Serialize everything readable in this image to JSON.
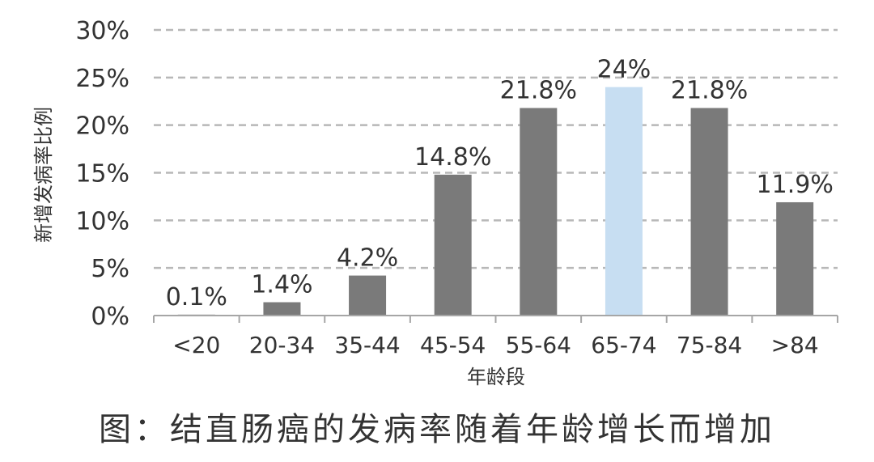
{
  "chart_data": {
    "type": "bar",
    "categories": [
      "<20",
      "20-34",
      "35-44",
      "45-54",
      "55-64",
      "65-74",
      "75-84",
      ">84"
    ],
    "values": [
      0.1,
      1.4,
      4.2,
      14.8,
      21.8,
      24,
      21.8,
      11.9
    ],
    "data_labels": [
      "0.1%",
      "1.4%",
      "4.2%",
      "14.8%",
      "21.8%",
      "24%",
      "21.8%",
      "11.9%"
    ],
    "highlight_index": 5,
    "yticks": [
      "0%",
      "5%",
      "10%",
      "15%",
      "20%",
      "25%",
      "30%"
    ],
    "ylim": [
      0,
      30
    ],
    "xlabel": "年龄段",
    "ylabel": "新增发病率比例",
    "grid": true,
    "colors": {
      "bar": "#7a7a7a",
      "highlight": "#c7def2",
      "grid": "#b8b8b8",
      "axis": "#a6a6a6"
    }
  },
  "caption": "图：结直肠癌的发病率随着年龄增长而增加"
}
